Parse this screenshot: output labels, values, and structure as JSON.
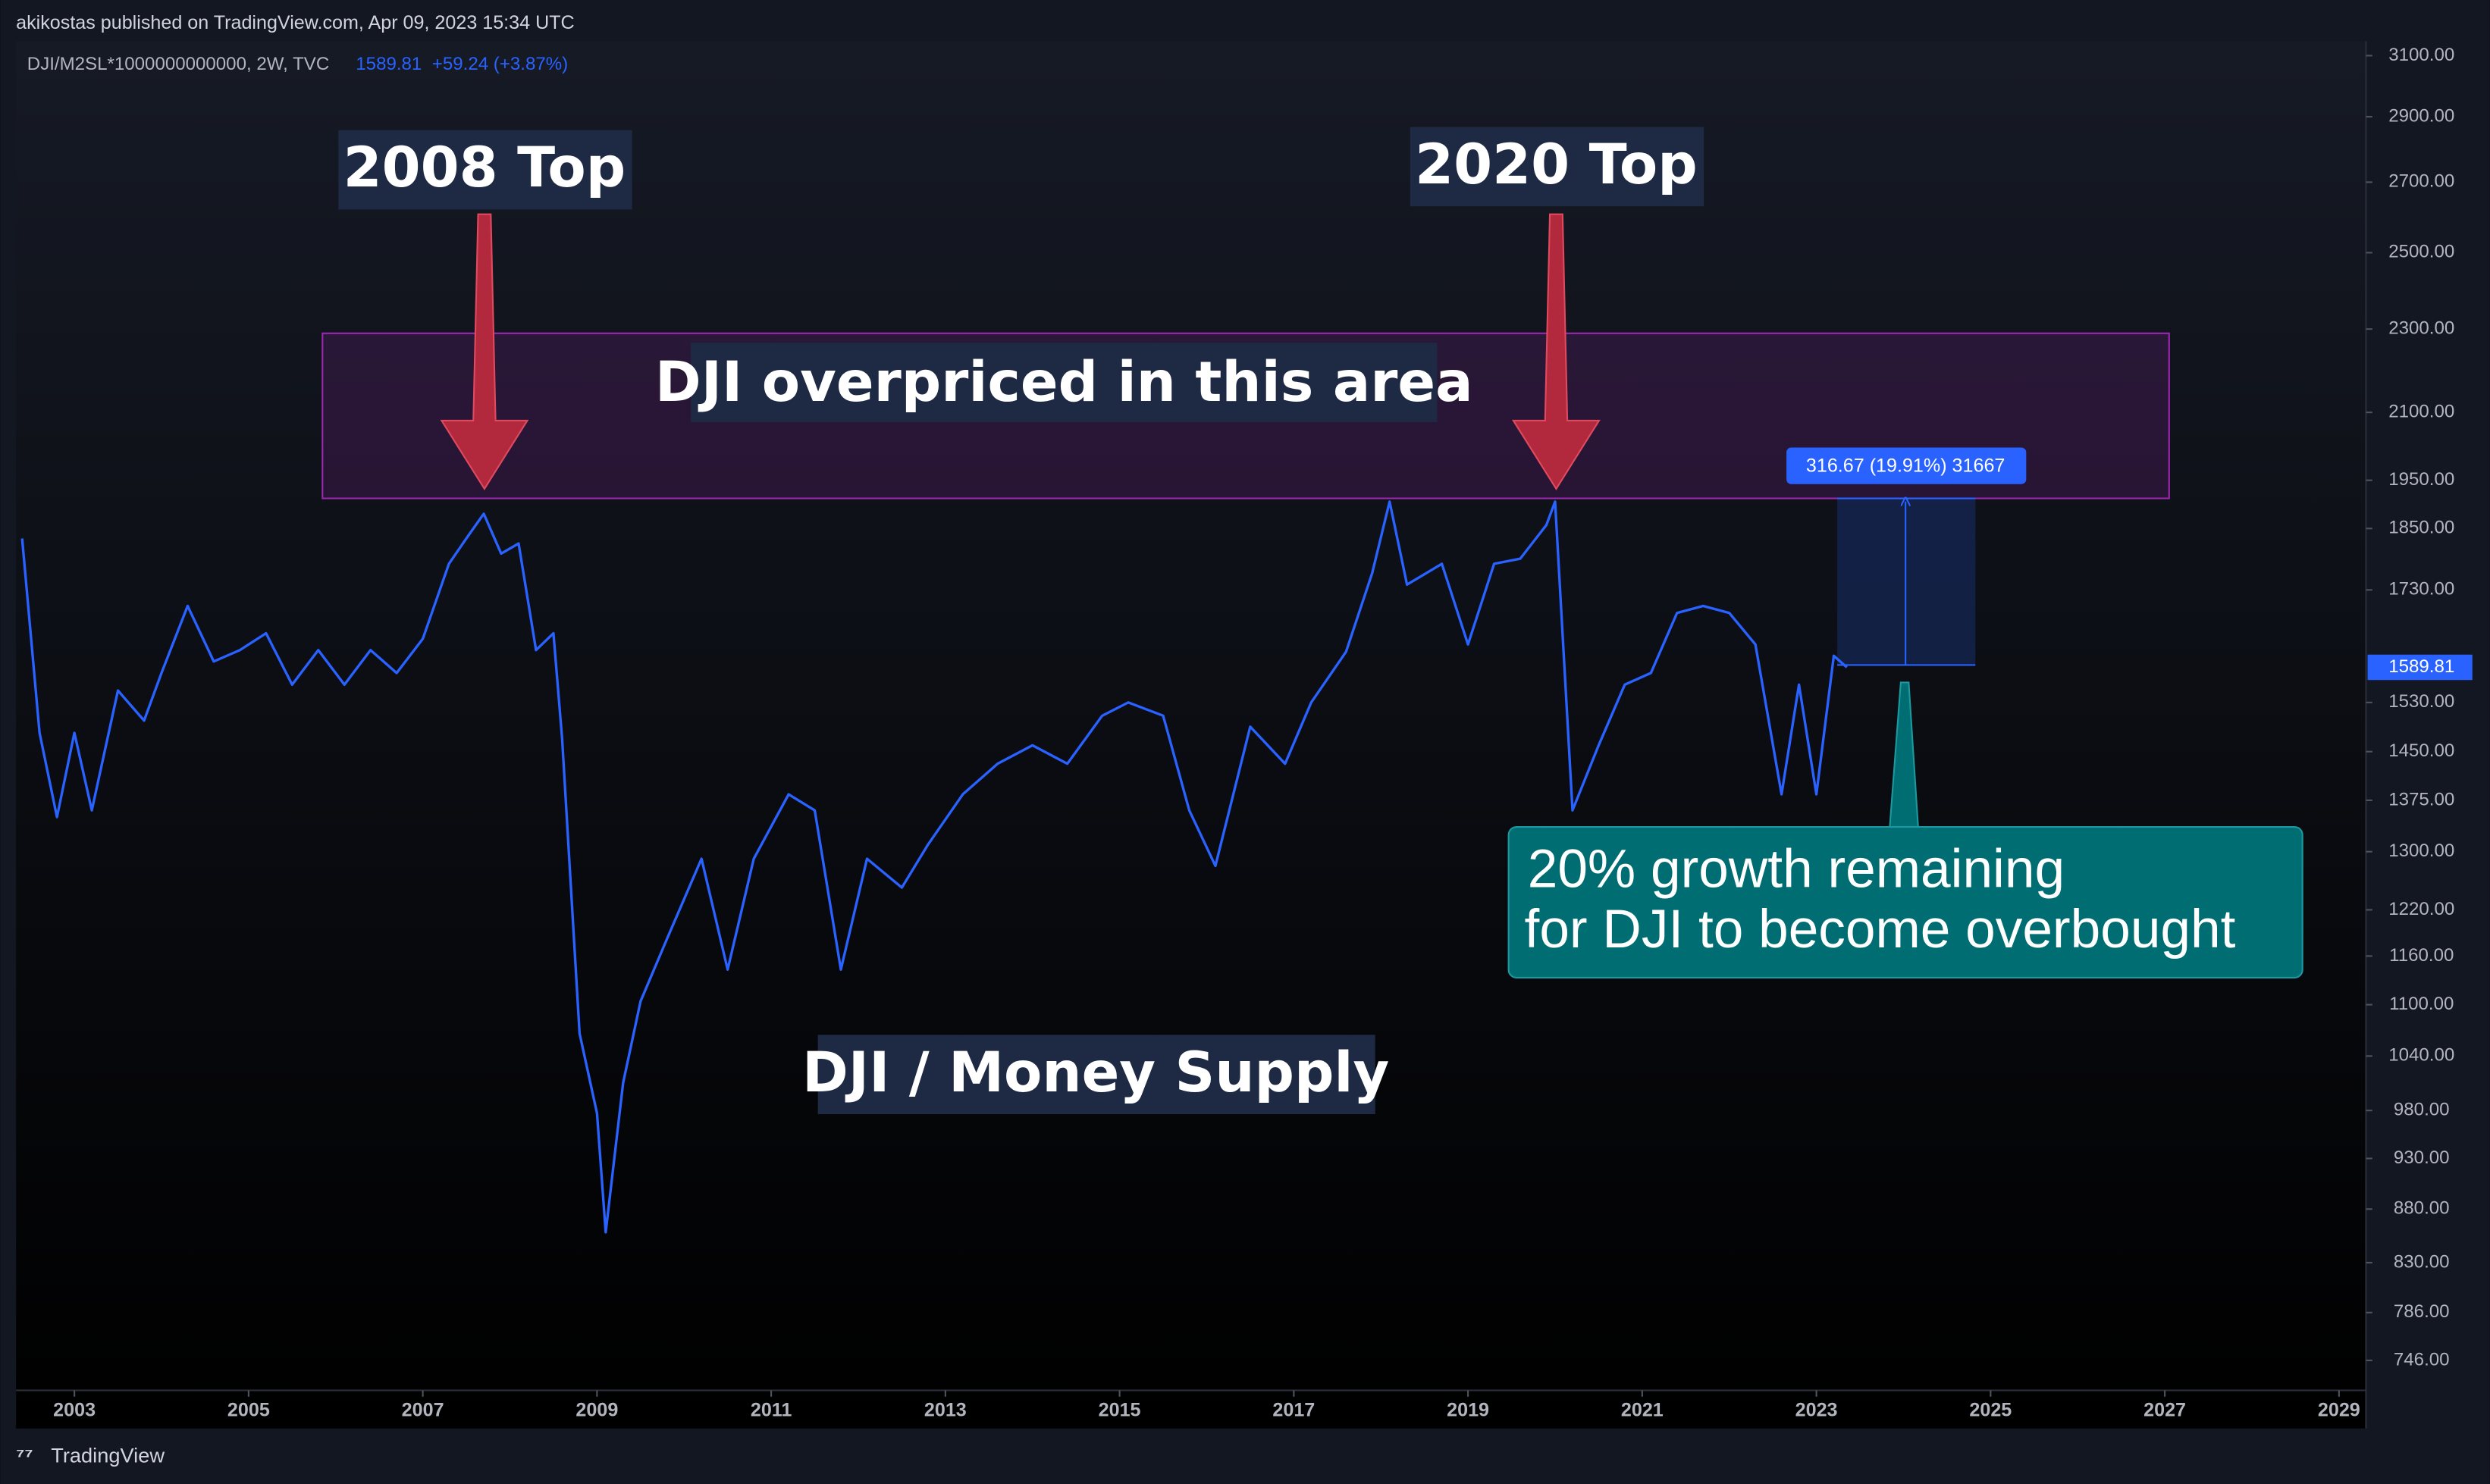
{
  "header": {
    "publisher": "akikostas published on TradingView.com, Apr 09, 2023 15:34 UTC",
    "symbol": "DJI/M2SL*1000000000000, 2W, TVC",
    "change": "+59.24 (+3.87%)",
    "footer": "TradingView"
  },
  "chart_data": {
    "type": "line",
    "log_scale": true,
    "grid": false,
    "x": [
      2002.4,
      2002.6,
      2002.8,
      2003.0,
      2003.2,
      2003.5,
      2003.8,
      2004.0,
      2004.3,
      2004.6,
      2004.9,
      2005.2,
      2005.5,
      2005.8,
      2006.1,
      2006.4,
      2006.7,
      2007.0,
      2007.3,
      2007.5,
      2007.7,
      2007.9,
      2008.1,
      2008.3,
      2008.5,
      2008.6,
      2008.8,
      2009.0,
      2009.1,
      2009.3,
      2009.5,
      2009.8,
      2010.2,
      2010.5,
      2010.8,
      2011.2,
      2011.5,
      2011.8,
      2012.1,
      2012.5,
      2012.8,
      2013.2,
      2013.6,
      2014.0,
      2014.4,
      2014.8,
      2015.1,
      2015.5,
      2015.8,
      2016.1,
      2016.5,
      2016.9,
      2017.2,
      2017.6,
      2017.9,
      2018.1,
      2018.3,
      2018.7,
      2019.0,
      2019.3,
      2019.6,
      2019.9,
      2020.0,
      2020.2,
      2020.5,
      2020.8,
      2021.1,
      2021.4,
      2021.7,
      2022.0,
      2022.3,
      2022.6,
      2022.8,
      2023.0,
      2023.2,
      2023.35
    ],
    "series": [
      {
        "name": "DJI/M2SL",
        "color": "#2962ff",
        "values": [
          1830,
          1480,
          1350,
          1480,
          1360,
          1550,
          1500,
          1580,
          1700,
          1600,
          1620,
          1650,
          1560,
          1620,
          1560,
          1620,
          1580,
          1640,
          1780,
          1830,
          1880,
          1800,
          1820,
          1620,
          1650,
          1470,
          1066,
          977,
          858,
          1010,
          1104,
          1181,
          1290,
          1143,
          1290,
          1384,
          1360,
          1143,
          1290,
          1250,
          1310,
          1384,
          1431,
          1460,
          1431,
          1508,
          1530,
          1508,
          1360,
          1280,
          1490,
          1431,
          1530,
          1617,
          1762,
          1905,
          1740,
          1780,
          1630,
          1780,
          1790,
          1857,
          1905,
          1360,
          1460,
          1560,
          1580,
          1687,
          1700,
          1687,
          1630,
          1384,
          1560,
          1384,
          1610,
          1589.81
        ]
      }
    ],
    "xlim": [
      2002.33,
      2029.31
    ],
    "xticks": [
      2003,
      2005,
      2007,
      2009,
      2011,
      2013,
      2015,
      2017,
      2019,
      2021,
      2023,
      2025,
      2027,
      2029
    ],
    "ylim": [
      722,
      3149
    ],
    "yticks": [
      {
        "value": 3100,
        "label": "3100.00"
      },
      {
        "value": 2900,
        "label": "2900.00"
      },
      {
        "value": 2700,
        "label": "2700.00"
      },
      {
        "value": 2500,
        "label": "2500.00"
      },
      {
        "value": 2300,
        "label": "2300.00"
      },
      {
        "value": 2100,
        "label": "2100.00"
      },
      {
        "value": 1950,
        "label": "1950.00"
      },
      {
        "value": 1850,
        "label": "1850.00"
      },
      {
        "value": 1730,
        "label": "1730.00"
      },
      {
        "value": 1530,
        "label": "1530.00"
      },
      {
        "value": 1450,
        "label": "1450.00"
      },
      {
        "value": 1375,
        "label": "1375.00"
      },
      {
        "value": 1300,
        "label": "1300.00"
      },
      {
        "value": 1220,
        "label": "1220.00"
      },
      {
        "value": 1160,
        "label": "1160.00"
      },
      {
        "value": 1100,
        "label": "1100.00"
      },
      {
        "value": 1040,
        "label": "1040.00"
      },
      {
        "value": 980,
        "label": "980.00"
      },
      {
        "value": 930,
        "label": "930.00"
      },
      {
        "value": 880,
        "label": "880.00"
      },
      {
        "value": 830,
        "label": "830.00"
      },
      {
        "value": 786,
        "label": "786.00"
      },
      {
        "value": 746,
        "label": "746.00"
      }
    ],
    "annotations": {
      "top_2008": "2008 Top",
      "top_2020": "2020 Top",
      "zone": "DJI overpriced in this area",
      "subject": "DJI / Money Supply",
      "growth_1": "20% growth remaining",
      "growth_2": "for DJI to become overbought",
      "measure": "316.67 (19.91%) 31667"
    }
  }
}
